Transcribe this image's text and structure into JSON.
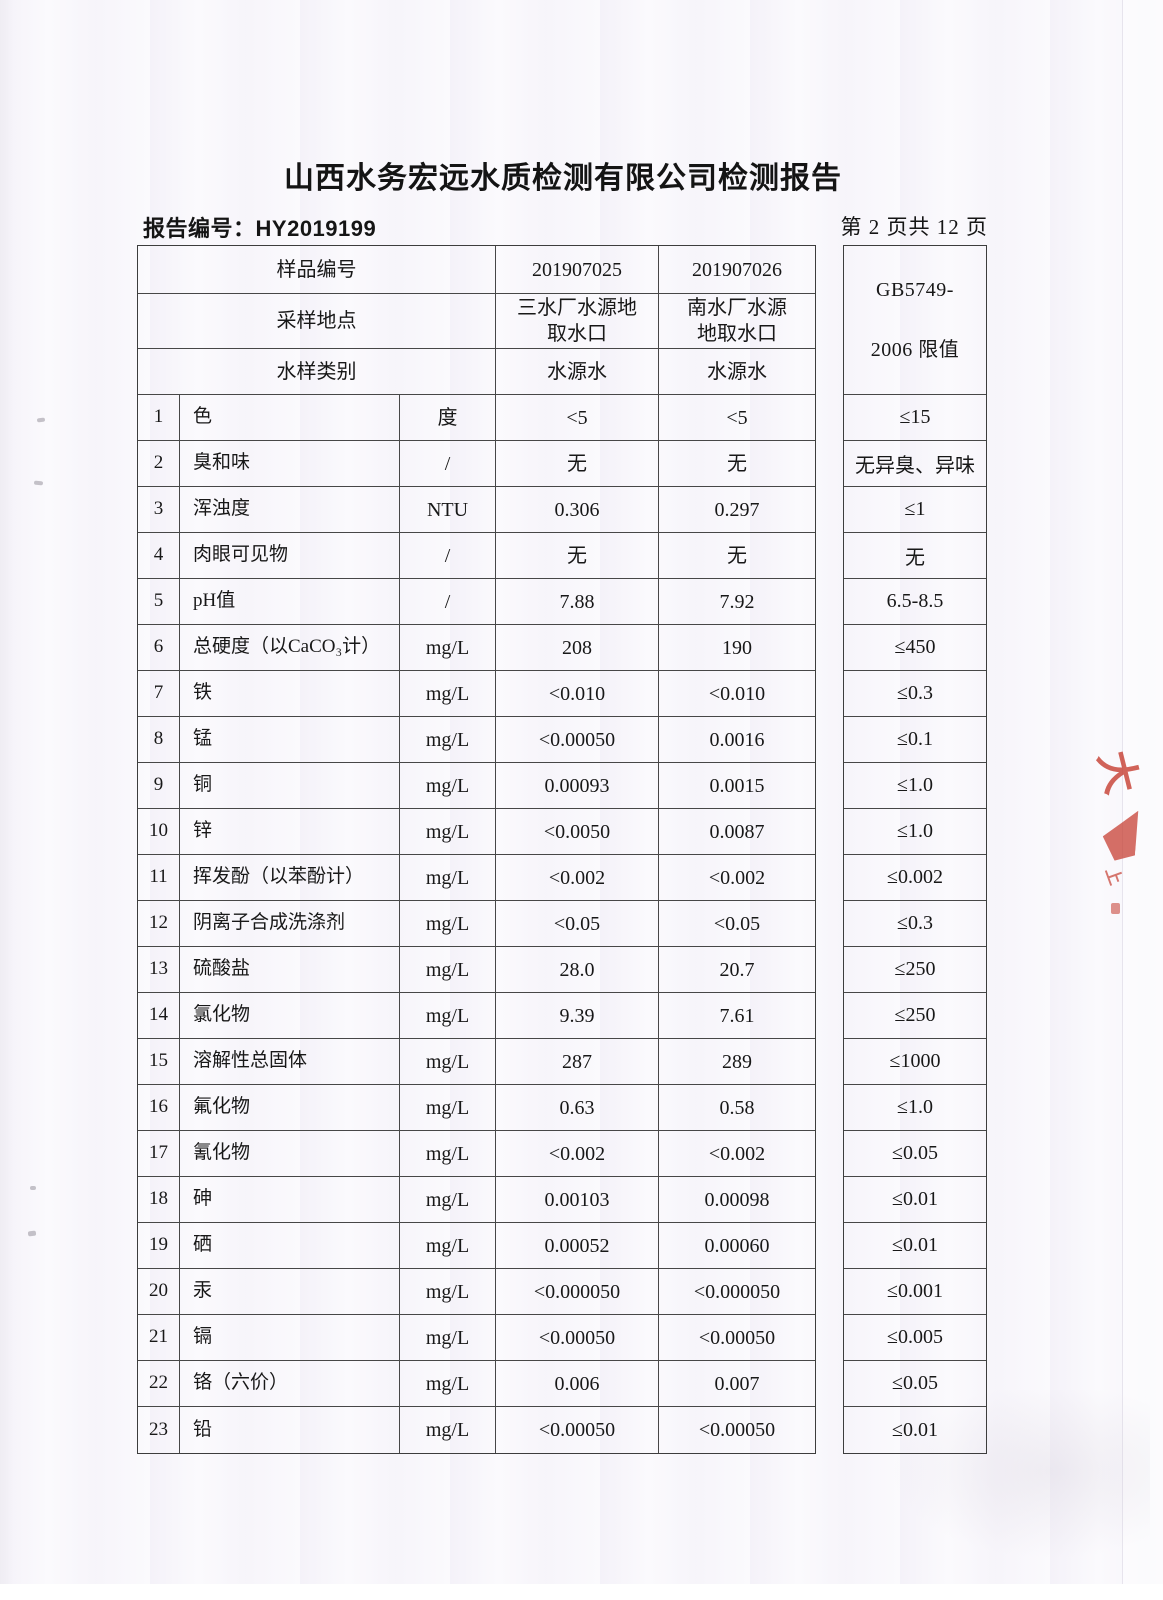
{
  "page": {
    "title": "山西水务宏远水质检测有限公司检测报告",
    "report_no_label": "报告编号：",
    "report_no": "HY2019199",
    "page_indicator": "第 2 页共 12 页"
  },
  "table": {
    "header": {
      "sample_no_label": "样品编号",
      "sample_no_1": "201907025",
      "sample_no_2": "201907026",
      "location_label": "采样地点",
      "location_1": "三水厂水源地\n取水口",
      "location_2": "南水厂水源\n地取水口",
      "type_label": "水样类别",
      "type_1": "水源水",
      "type_2": "水源水",
      "limit_header": "GB5749-\n\n2006 限值"
    },
    "rows": [
      {
        "no": "1",
        "name": "色",
        "unit": "度",
        "v1": "<5",
        "v2": "<5",
        "limit": "≤15"
      },
      {
        "no": "2",
        "name": "臭和味",
        "unit": "/",
        "v1": "无",
        "v2": "无",
        "limit": "无异臭、异味"
      },
      {
        "no": "3",
        "name": "浑浊度",
        "unit": "NTU",
        "v1": "0.306",
        "v2": "0.297",
        "limit": "≤1"
      },
      {
        "no": "4",
        "name": "肉眼可见物",
        "unit": "/",
        "v1": "无",
        "v2": "无",
        "limit": "无"
      },
      {
        "no": "5",
        "name": "pH值",
        "unit": "/",
        "v1": "7.88",
        "v2": "7.92",
        "limit": "6.5-8.5"
      },
      {
        "no": "6",
        "name": "总硬度（以CaCO₃计）",
        "unit": "mg/L",
        "v1": "208",
        "v2": "190",
        "limit": "≤450"
      },
      {
        "no": "7",
        "name": "铁",
        "unit": "mg/L",
        "v1": "<0.010",
        "v2": "<0.010",
        "limit": "≤0.3"
      },
      {
        "no": "8",
        "name": "锰",
        "unit": "mg/L",
        "v1": "<0.00050",
        "v2": "0.0016",
        "limit": "≤0.1"
      },
      {
        "no": "9",
        "name": "铜",
        "unit": "mg/L",
        "v1": "0.00093",
        "v2": "0.0015",
        "limit": "≤1.0"
      },
      {
        "no": "10",
        "name": "锌",
        "unit": "mg/L",
        "v1": "<0.0050",
        "v2": "0.0087",
        "limit": "≤1.0"
      },
      {
        "no": "11",
        "name": "挥发酚（以苯酚计）",
        "unit": "mg/L",
        "v1": "<0.002",
        "v2": "<0.002",
        "limit": "≤0.002"
      },
      {
        "no": "12",
        "name": "阴离子合成洗涤剂",
        "unit": "mg/L",
        "v1": "<0.05",
        "v2": "<0.05",
        "limit": "≤0.3"
      },
      {
        "no": "13",
        "name": "硫酸盐",
        "unit": "mg/L",
        "v1": "28.0",
        "v2": "20.7",
        "limit": "≤250"
      },
      {
        "no": "14",
        "name": "氯化物",
        "unit": "mg/L",
        "v1": "9.39",
        "v2": "7.61",
        "limit": "≤250"
      },
      {
        "no": "15",
        "name": "溶解性总固体",
        "unit": "mg/L",
        "v1": "287",
        "v2": "289",
        "limit": "≤1000"
      },
      {
        "no": "16",
        "name": "氟化物",
        "unit": "mg/L",
        "v1": "0.63",
        "v2": "0.58",
        "limit": "≤1.0"
      },
      {
        "no": "17",
        "name": "氰化物",
        "unit": "mg/L",
        "v1": "<0.002",
        "v2": "<0.002",
        "limit": "≤0.05"
      },
      {
        "no": "18",
        "name": "砷",
        "unit": "mg/L",
        "v1": "0.00103",
        "v2": "0.00098",
        "limit": "≤0.01"
      },
      {
        "no": "19",
        "name": "硒",
        "unit": "mg/L",
        "v1": "0.00052",
        "v2": "0.00060",
        "limit": "≤0.01"
      },
      {
        "no": "20",
        "name": "汞",
        "unit": "mg/L",
        "v1": "<0.000050",
        "v2": "<0.000050",
        "limit": "≤0.001"
      },
      {
        "no": "21",
        "name": "镉",
        "unit": "mg/L",
        "v1": "<0.00050",
        "v2": "<0.00050",
        "limit": "≤0.005"
      },
      {
        "no": "22",
        "name": "铬（六价）",
        "unit": "mg/L",
        "v1": "0.006",
        "v2": "0.007",
        "limit": "≤0.05"
      },
      {
        "no": "23",
        "name": "铅",
        "unit": "mg/L",
        "v1": "<0.00050",
        "v2": "<0.00050",
        "limit": "≤0.01"
      }
    ]
  },
  "stamp": {
    "color": "#c5392c",
    "glyph_1": "大",
    "glyph_2": "上"
  }
}
